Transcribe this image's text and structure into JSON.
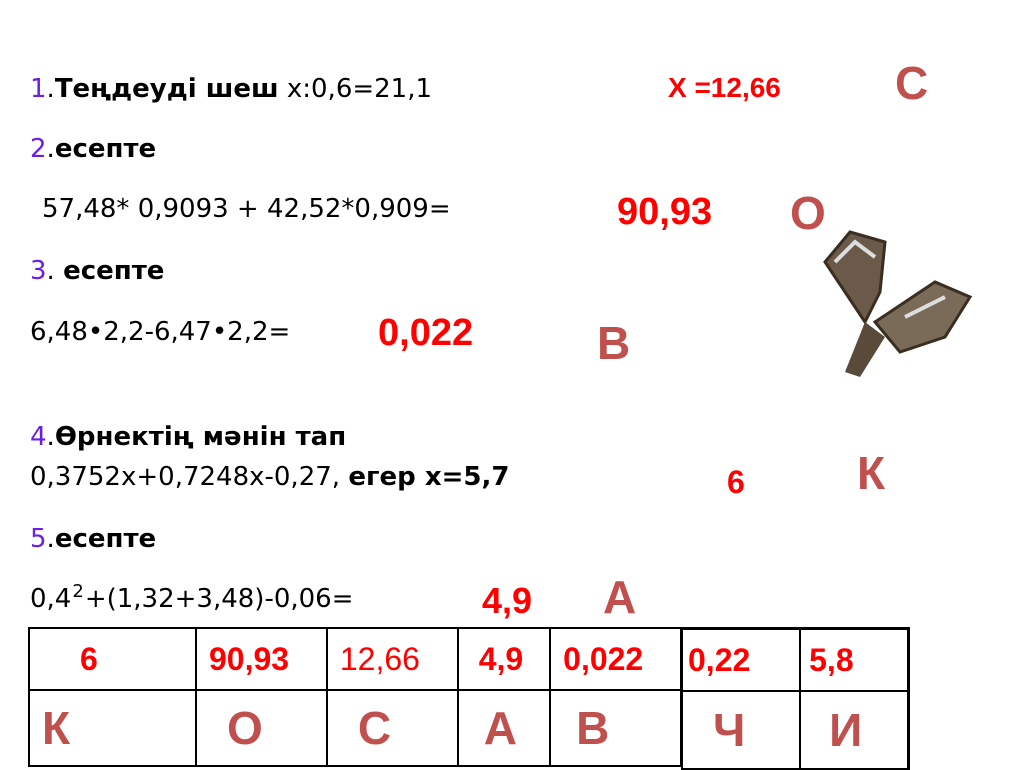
{
  "tasks": [
    {
      "number": "1",
      "label": "Теңдеуді шеш",
      "expr": "x:0,6=21,1",
      "answer": "X =12,66",
      "letter": "С"
    },
    {
      "number": "2",
      "label": "есепте",
      "expr": "57,48* 0,9093 + 42,52*0,909=",
      "answer": "90,93",
      "letter": "О"
    },
    {
      "number": "3",
      "label": "есепте",
      "expr": "6,48•2,2-6,47•2,2=",
      "answer": "0,022",
      "letter": "В"
    },
    {
      "number": "4",
      "label": "Өрнектің мәнін тап",
      "expr": "0,3752x+0,7248x-0,27,",
      "cond": "егер x=5,7",
      "answer": "6",
      "letter": "К"
    },
    {
      "number": "5",
      "label": "есепте",
      "expr_a": "0,4",
      "expr_sup": "2",
      "expr_b": "+(1,32+3,48)-0,06=",
      "answer": "4,9",
      "letter": "А"
    }
  ],
  "table": {
    "values": [
      "6",
      "90,93",
      "12,66",
      "4,9",
      "0,022"
    ],
    "letters": [
      "К",
      "О",
      "С",
      "А",
      "В"
    ],
    "extra_values": [
      "0,22",
      "5,8"
    ],
    "extra_letters": [
      "Ч",
      "И"
    ]
  },
  "colors": {
    "answer": "#ff0000",
    "letter": "#c0504d",
    "number": "#6a1fe6"
  },
  "decoration": "butterfly-image"
}
